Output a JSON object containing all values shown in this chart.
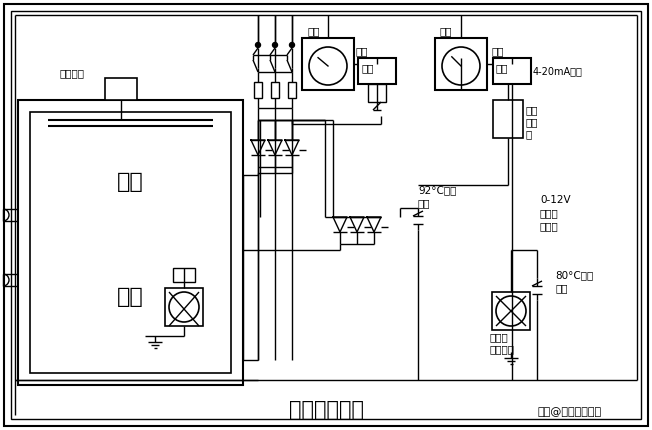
{
  "title": "井式炉控制图",
  "subtitle": "头条@电子工程世界",
  "labels": {
    "stirrer": "搅拌电机",
    "upper_zone": "上区",
    "lower_zone": "下区",
    "record1": "记录",
    "control1": "控制",
    "instrument1": "仪表",
    "record2": "记录",
    "control2": "控制",
    "instrument2": "仪表",
    "output": "4-20mA输出",
    "freq_gen_line1": "周波",
    "freq_gen_line2": "发生",
    "freq_gen_line3": "器",
    "temp_switch1_line1": "92°C温度",
    "temp_switch1_line2": "开关",
    "trigger_line1": "0-12V",
    "trigger_line2": "触发控",
    "trigger_line3": "制电压",
    "temp_switch2_line1": "80°C温度",
    "temp_switch2_line2": "开关",
    "scr_fan_line1": "可控硅",
    "scr_fan_line2": "散热风机"
  }
}
